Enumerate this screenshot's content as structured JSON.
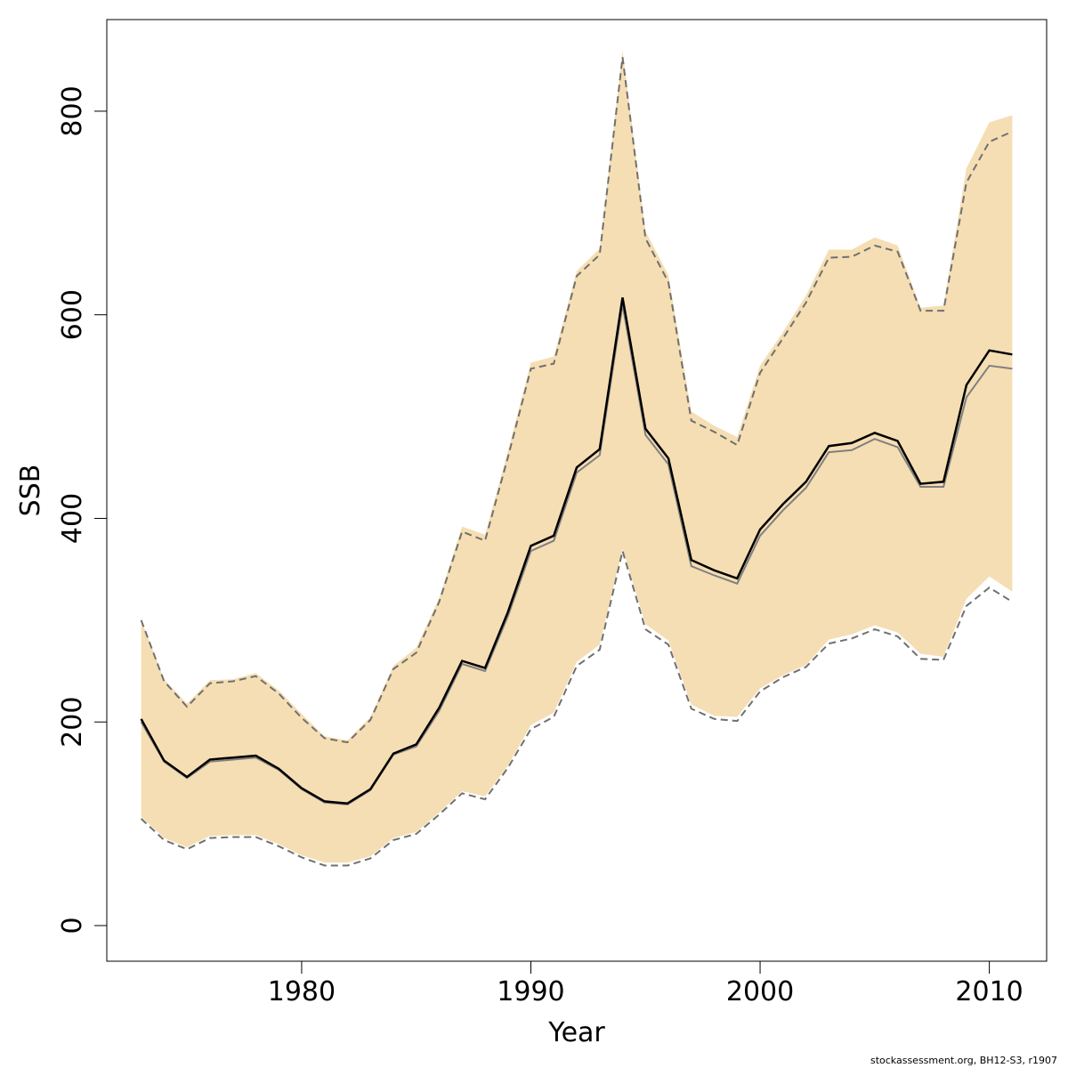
{
  "chart_data": {
    "type": "line",
    "xlabel": "Year",
    "ylabel": "SSB",
    "xlim": [
      1971.5,
      2012.5
    ],
    "ylim": [
      -35,
      890
    ],
    "x_ticks": [
      1980,
      1990,
      2000,
      2010
    ],
    "y_ticks": [
      0,
      200,
      400,
      600,
      800
    ],
    "x_tick_labels": [
      "1980",
      "1990",
      "2000",
      "2010"
    ],
    "y_tick_labels": [
      "0",
      "200",
      "400",
      "600",
      "800"
    ],
    "grid": false,
    "legend": "none",
    "colors": {
      "band": "#f5deb3",
      "main": "#000000",
      "secondary": "#808080",
      "dashed": "#707070",
      "axis": "#000000"
    },
    "x": [
      1973,
      1974,
      1975,
      1976,
      1977,
      1978,
      1979,
      1980,
      1981,
      1982,
      1983,
      1984,
      1985,
      1986,
      1987,
      1988,
      1989,
      1990,
      1991,
      1992,
      1993,
      1994,
      1995,
      1996,
      1997,
      1998,
      1999,
      2000,
      2001,
      2002,
      2003,
      2004,
      2005,
      2006,
      2007,
      2008,
      2009,
      2010,
      2011
    ],
    "series": [
      {
        "values": [
          203,
          162,
          146,
          163,
          165,
          167,
          154,
          135,
          122,
          120,
          134,
          169,
          178,
          214,
          260,
          253,
          308,
          373,
          383,
          450,
          468,
          617,
          488,
          459,
          359,
          349,
          341,
          389,
          414,
          436,
          471,
          474,
          484,
          476,
          434,
          436,
          531,
          565,
          561
        ]
      },
      {
        "values": [
          200,
          161,
          145,
          161,
          163,
          165,
          153,
          134,
          121,
          119,
          133,
          168,
          176,
          211,
          257,
          250,
          304,
          368,
          378,
          445,
          462,
          610,
          482,
          453,
          353,
          344,
          336,
          383,
          408,
          430,
          465,
          467,
          478,
          470,
          431,
          431,
          519,
          550,
          547
        ]
      }
    ],
    "band_upper": [
      300,
      242,
      218,
      241,
      242,
      248,
      231,
      208,
      186,
      182,
      205,
      255,
      273,
      322,
      392,
      384,
      466,
      553,
      559,
      643,
      665,
      860,
      682,
      639,
      505,
      491,
      480,
      550,
      583,
      619,
      664,
      664,
      676,
      668,
      607,
      609,
      744,
      789,
      796
    ],
    "band_lower": [
      107,
      86,
      77,
      88,
      89,
      89,
      80,
      69,
      62,
      62,
      68,
      86,
      92,
      111,
      132,
      127,
      157,
      197,
      209,
      259,
      276,
      370,
      296,
      280,
      217,
      206,
      205,
      233,
      246,
      256,
      281,
      286,
      295,
      288,
      267,
      264,
      321,
      343,
      328
    ],
    "dashed_upper": [
      300,
      240,
      215,
      238,
      240,
      245,
      228,
      204,
      184,
      180,
      202,
      252,
      268,
      318,
      387,
      378,
      460,
      547,
      552,
      638,
      659,
      853,
      675,
      632,
      496,
      485,
      472,
      543,
      577,
      612,
      656,
      657,
      668,
      662,
      604,
      604,
      730,
      770,
      780
    ],
    "dashed_lower": [
      105,
      84,
      75,
      86,
      87,
      87,
      78,
      67,
      59,
      59,
      66,
      84,
      90,
      109,
      130,
      124,
      155,
      193,
      205,
      255,
      271,
      368,
      291,
      276,
      213,
      203,
      201,
      230,
      244,
      254,
      277,
      282,
      291,
      284,
      262,
      261,
      314,
      332,
      318
    ]
  },
  "credit_text": "stockassessment.org, BH12-S3, r1907"
}
